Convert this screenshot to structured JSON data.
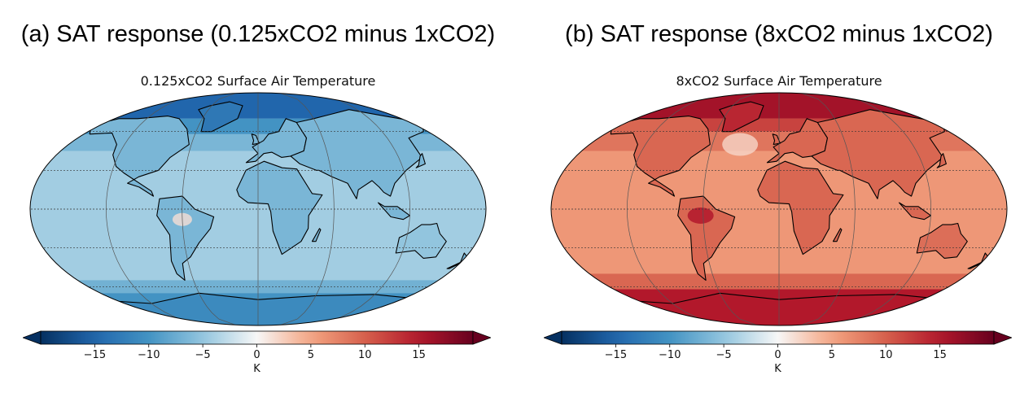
{
  "panels": [
    {
      "title": "(a) SAT response (0.125xCO2 minus 1xCO2)",
      "map_title": "0.125xCO2 Surface Air Temperature",
      "scheme": "cold"
    },
    {
      "title": "(b) SAT response (8xCO2 minus 1xCO2)",
      "map_title": "8xCO2 Surface Air Temperature",
      "scheme": "warm"
    }
  ],
  "colorbar": {
    "ticks": [
      "−15",
      "−10",
      "−5",
      "0",
      "5",
      "10",
      "15"
    ],
    "tick_values": [
      -15,
      -10,
      -5,
      0,
      5,
      10,
      15
    ],
    "range": [
      -20,
      20
    ],
    "unit": "K",
    "colormap": "RdBu_r",
    "extend": "both"
  },
  "chart_data": [
    {
      "type": "heatmap",
      "title": "0.125xCO2 Surface Air Temperature",
      "projection": "Robinson",
      "variable": "Surface Air Temperature response",
      "unit": "K",
      "color_range": [
        -20,
        20
      ],
      "colorbar_ticks": [
        -15,
        -10,
        -5,
        0,
        5,
        10,
        15
      ]
    },
    {
      "type": "heatmap",
      "title": "8xCO2 Surface Air Temperature",
      "projection": "Robinson",
      "variable": "Surface Air Temperature response",
      "unit": "K",
      "color_range": [
        -20,
        20
      ],
      "colorbar_ticks": [
        -15,
        -10,
        -5,
        0,
        5,
        10,
        15
      ]
    }
  ]
}
